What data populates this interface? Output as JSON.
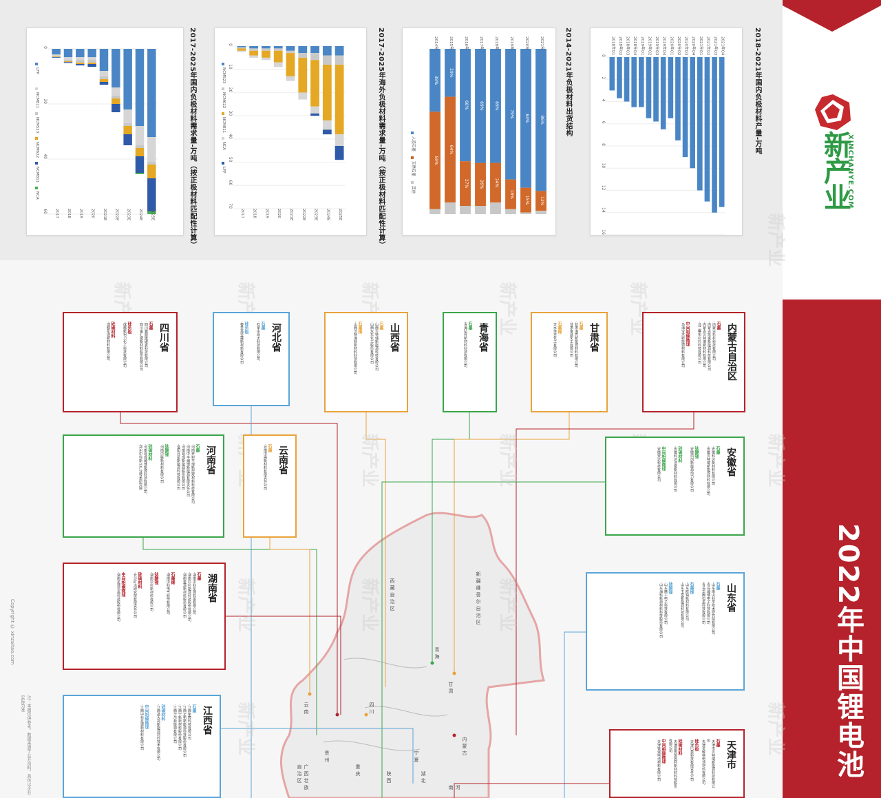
{
  "poster": {
    "title": "2022年中国锂电池",
    "brand": "新产业",
    "brand_sub": "XINCHANYE.COM",
    "copyright": "Copyright © xinzaitao.com",
    "footnote": "注：本图仅供参考，数据来源于公开资料，具体以企业实际为准",
    "brand_color": "#b5222b",
    "logo_green": "#2f9a45"
  },
  "charts": [
    {
      "title": "2017-2025年国内负极材料需求量-万吨（按正极材料匹配性计算）",
      "chart_data": {
        "type": "bar",
        "orientation": "horizontal-stacked",
        "categories": [
          "2017",
          "2018",
          "2019",
          "2020",
          "2021E",
          "2022E",
          "2023E",
          "2024E",
          "2025E"
        ],
        "ticks": [
          0,
          20,
          40,
          60
        ],
        "xlim": [
          0,
          60
        ],
        "series": [
          {
            "name": "LFP",
            "color": "#4a86c5",
            "values": [
              2,
              3,
              3,
              3,
              8,
              14,
              22,
              28,
              32
            ]
          },
          {
            "name": "NCM811",
            "color": "#d6d6d6",
            "values": [
              0.5,
              1,
              1,
              1,
              2,
              3,
              5,
              7,
              9
            ]
          },
          {
            "name": "NCM523",
            "color": "#c8c8c8",
            "values": [
              0.3,
              0.5,
              1,
              1,
              1,
              1,
              1,
              1,
              1
            ]
          },
          {
            "name": "NCM622",
            "color": "#e4a824",
            "values": [
              0.2,
              0.3,
              0.5,
              0.5,
              1,
              2,
              3,
              3,
              5
            ]
          },
          {
            "name": "NCM811",
            "color": "#2e5aa8",
            "values": [
              0.2,
              0.3,
              0.5,
              1,
              1,
              3,
              4,
              6,
              12
            ]
          },
          {
            "name": "NCA",
            "color": "#4caf50",
            "values": [
              0,
              0,
              0,
              0,
              0,
              0,
              0,
              0.5,
              1
            ]
          }
        ]
      }
    },
    {
      "title": "2017-2025年海外负极材料需求量-万吨（按正极材料匹配性计算）",
      "chart_data": {
        "type": "bar",
        "orientation": "horizontal-stacked",
        "categories": [
          "2017",
          "2018",
          "2019",
          "2020",
          "2021E",
          "2022E",
          "2023E",
          "2024E",
          "2025E"
        ],
        "ticks": [
          0,
          10,
          20,
          30,
          40,
          50,
          60,
          70
        ],
        "xlim": [
          0,
          70
        ],
        "series": [
          {
            "name": "NCM523",
            "color": "#4a86c5",
            "values": [
              0.5,
              1,
              1,
              1,
              2,
              3,
              3,
              4,
              4
            ]
          },
          {
            "name": "NCM622",
            "color": "#c8c8c8",
            "values": [
              0.5,
              1,
              1,
              1,
              1,
              2,
              3,
              4,
              4
            ]
          },
          {
            "name": "NCM811",
            "color": "#e4a824",
            "values": [
              1,
              2,
              3,
              5,
              10,
              15,
              20,
              24,
              30
            ]
          },
          {
            "name": "NCA",
            "color": "#d6d6d6",
            "values": [
              0.5,
              1,
              1,
              2,
              2,
              3,
              3,
              4,
              5
            ]
          },
          {
            "name": "LFP",
            "color": "#2e5aa8",
            "values": [
              0,
              0,
              0,
              0,
              0,
              0,
              1,
              2,
              6
            ]
          }
        ]
      }
    },
    {
      "title": "2014-2021年负极材料出货结构",
      "chart_data": {
        "type": "bar",
        "orientation": "horizontal-stacked-100",
        "categories": [
          "2014年",
          "2015年",
          "2016年",
          "2017年",
          "2018年",
          "2019年",
          "2020年",
          "2021年"
        ],
        "series": [
          {
            "name": "人造石墨",
            "color": "#4a86c5",
            "values": [
              38,
              29,
              68,
              69,
              69,
              79,
              84,
              86
            ],
            "labels": [
              "38%",
              "29%",
              "68%",
              "69%",
              "69%",
              "79%",
              "84%",
              "86%"
            ]
          },
          {
            "name": "天然石墨",
            "color": "#d0692a",
            "values": [
              59,
              64,
              27,
              26,
              24,
              18,
              15,
              12
            ],
            "labels": [
              "59%",
              "64%",
              "27%",
              "26%",
              "24%",
              "18%",
              "15%",
              "12%"
            ]
          },
          {
            "name": "其他",
            "color": "#c8c8c8",
            "values": [
              3,
              7,
              5,
              5,
              7,
              3,
              1,
              2
            ]
          }
        ]
      }
    },
    {
      "title": "2018-2021年国内负极材料产量-万吨",
      "chart_data": {
        "type": "bar",
        "orientation": "horizontal",
        "categories": [
          "2018年Q1",
          "2018年Q2",
          "2018年Q3",
          "2018年Q4",
          "2019年Q1",
          "2019年Q2",
          "2019年Q3",
          "2019年Q4",
          "2020年Q1",
          "2020年Q2",
          "2020年Q3",
          "2020年Q4",
          "2021年Q1",
          "2021年Q2",
          "2021年Q3",
          "2021年Q4"
        ],
        "ticks": [
          0,
          2,
          4,
          6,
          8,
          10,
          12,
          14,
          16
        ],
        "xlim": [
          0,
          16
        ],
        "series": [
          {
            "name": "产量",
            "color": "#4a86c5",
            "values": [
              3,
              3.7,
              4,
              4.5,
              4.5,
              5.5,
              5.8,
              6.5,
              5.5,
              7.5,
              9,
              10,
              12,
              13,
              14,
              13.5
            ]
          }
        ]
      }
    }
  ],
  "provinces": [
    {
      "name": "四川省",
      "color": "#b5222b",
      "cols": [
        [
          "石墨",
          "·四川翼顺隆碳素科技有限公司",
          "·四川金汇能新材料股份有限公司"
        ],
        [
          "硅负极",
          "·成都新柯力化工科技有限公司"
        ],
        [
          "硅碳材料",
          "·成都星迪新材料有限公司"
        ]
      ]
    },
    {
      "name": "河北省",
      "color": "#5aa5d8",
      "cols": [
        [
          "石墨",
          "·石家庄尚太科技有限公司"
        ],
        [
          "硅负极",
          "·秦皇岛昱晟新材料有限公司"
        ]
      ]
    },
    {
      "name": "山西省",
      "color": "#e8a33a",
      "cols": [
        [
          "石墨",
          "·山西贝特瑞新能源科技有限公司",
          "·山西永东化工股份有限公司"
        ],
        [
          "石墨烯",
          "·山西沃特海默新材料科技有限公司"
        ]
      ]
    },
    {
      "name": "青海省",
      "color": "#3aa54a",
      "cols": [
        [
          "石墨",
          "·青海弘昇新材料科技有限公司"
        ]
      ]
    },
    {
      "name": "甘肃省",
      "color": "#e8a33a",
      "cols": [
        [
          "石墨",
          "·甘肃海亮新能源材料有限公司",
          "·甘肃金昌化工有限公司"
        ],
        [
          "石墨烯",
          "·天水佳吉化工有限公司"
        ]
      ]
    },
    {
      "name": "内蒙古自治区",
      "color": "#b5222b",
      "cols": [
        [
          "石墨",
          "·内蒙古杉杉科技有限公司",
          "·内蒙古凯金新能源科技有限公司",
          "·内蒙古贝特瑞新材料有限公司",
          "·乌兰察布杉杉科技有限公司"
        ],
        [
          "中间相碳微球",
          "·乌海宝杰新能源材料有限公司"
        ]
      ]
    },
    {
      "name": "河南省",
      "color": "#3aa54a",
      "cols": [
        [
          "石墨",
          "·河南开封平煤新型炭材料科技有限公司",
          "·河南中平瀚博新能源有限责任公司",
          "·河南易成新能源股份有限公司",
          "·洛阳月星新能源科技有限公司"
        ],
        [
          "钛酸锂",
          "·河南中联新材料有限公司"
        ],
        [
          "硅碳材料",
          "·河南易成瀚博能源科技有限公司",
          "·郑州中科新兴产业技术研究院"
        ]
      ]
    },
    {
      "name": "云南省",
      "color": "#e8a33a",
      "cols": [
        [
          "石墨",
          "·云南中晟新材料有限责任公司"
        ]
      ]
    },
    {
      "name": "安徽省",
      "color": "#3aa54a",
      "cols": [
        [
          "石墨",
          "·安徽科达新材料有限公司",
          "·安徽贝特瑞新能源材料有限公司"
        ],
        [
          "钛酸锂",
          "·安徽鸿创新能源动力有限公司"
        ],
        [
          "硅碳材料",
          "·安徽科达洁能新材料有限公司"
        ],
        [
          "中间相碳微球",
          "·安徽安达科技有限公司"
        ]
      ]
    },
    {
      "name": "湖南省",
      "color": "#b5222b",
      "cols": [
        [
          "石墨",
          "·湖南中科星城石墨有限公司",
          "·湖南杉杉能源科技股份有限公司",
          "·湖南金源新材料股份有限公司"
        ],
        [
          "石墨烯",
          "·湖南中科电气股份有限公司"
        ],
        [
          "钛酸锂",
          "·湖南杉杉新材料有限公司"
        ],
        [
          "硅碳材料",
          "·长沙矿冶研究院有限责任公司"
        ],
        [
          "中间相碳微球",
          "·湖南星城石墨科技股份有限公司"
        ]
      ]
    },
    {
      "name": "山东省",
      "color": "#5aa5d8",
      "cols": [
        [
          "石墨",
          "·山东南山科学技术研究院有限公司",
          "·青岛瀚博电子科技有限公司",
          "·青岛华腾石墨科技有限公司"
        ],
        [
          "石墨烯",
          "·山东欧铂新材料有限公司",
          "·山东玉皇新能源科技有限公司"
        ],
        [
          "钛酸锂",
          "·山东精工电子科技有限公司",
          "·山东海科新源材料科技股份有限公司"
        ]
      ]
    },
    {
      "name": "江西省",
      "color": "#5aa5d8",
      "cols": [
        [
          "石墨",
          "·江西紫宸科技有限公司",
          "·江西正拓新能源科技股份有限公司",
          "·江西宁新新材料股份有限公司",
          "·江西华尔新能源有限公司"
        ],
        [
          "硅碳材料",
          "·江西昌大高新能源材料技术有限公司"
        ],
        [
          "中间相碳微球",
          "·江西中科星城新材料有限公司"
        ]
      ]
    },
    {
      "name": "天津市",
      "color": "#b5222b",
      "cols": [
        [
          "石墨",
          "·天津市贝特瑞新能源科技有限公司",
          "·天津爱敏特电池材料有限公司"
        ],
        [
          "硅负极",
          "·天津巴莫科技有限责任公司"
        ],
        [
          "硅碳材料",
          "·天津国安盟固利新材料科技股份有限公司"
        ],
        [
          "中间相碳微球",
          "·天津铁诚电池材料有限公司"
        ]
      ]
    }
  ],
  "map_labels": [
    "新疆维吾尔自治区",
    "西藏自治区",
    "青海",
    "甘肃",
    "内蒙古",
    "宁夏",
    "陕西",
    "四川",
    "云南",
    "贵州",
    "重庆",
    "广西壮族自治区",
    "湖北",
    "河南"
  ]
}
